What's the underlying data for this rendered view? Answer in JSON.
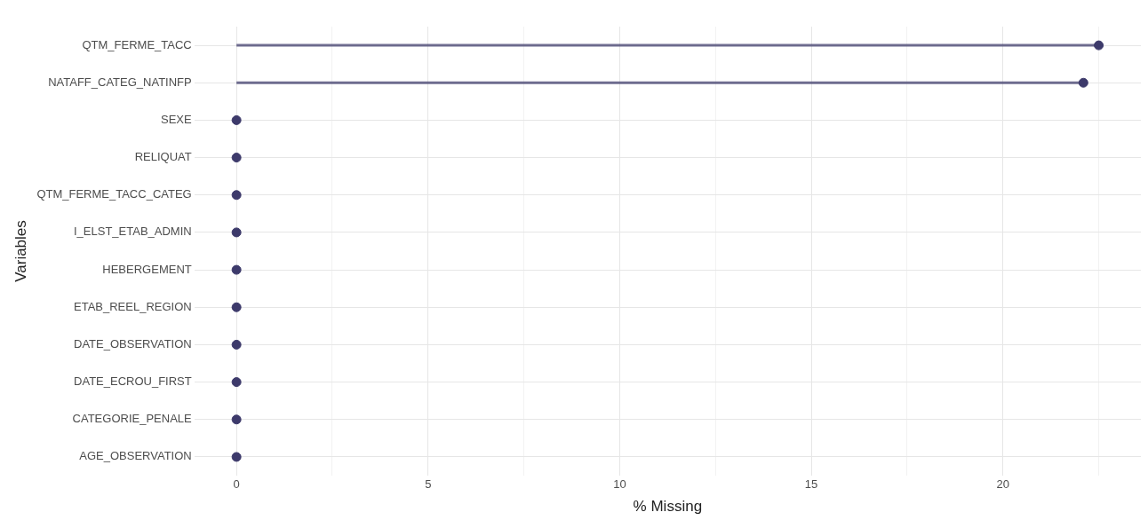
{
  "chart_data": {
    "type": "lollipop",
    "orientation": "horizontal",
    "categories": [
      "QTM_FERME_TACC",
      "NATAFF_CATEG_NATINFP",
      "SEXE",
      "RELIQUAT",
      "QTM_FERME_TACC_CATEG",
      "I_ELST_ETAB_ADMIN",
      "HEBERGEMENT",
      "ETAB_REEL_REGION",
      "DATE_OBSERVATION",
      "DATE_ECROU_FIRST",
      "CATEGORIE_PENALE",
      "AGE_OBSERVATION"
    ],
    "values": [
      22.5,
      22.1,
      0,
      0,
      0,
      0,
      0,
      0,
      0,
      0,
      0,
      0
    ],
    "color": "#3d3a6b",
    "xlabel": "% Missing",
    "ylabel": "Variables",
    "xlim": [
      -1.1,
      23.6
    ],
    "xticks": [
      0,
      {
        "value": 2.5,
        "label": null
      },
      5,
      {
        "value": 7.5,
        "label": null
      },
      10,
      {
        "value": 12.5,
        "label": null
      },
      15,
      {
        "value": 17.5,
        "label": null
      },
      20,
      {
        "value": 22.5,
        "label": null
      }
    ],
    "grid": true,
    "marker": "circle",
    "legend": false
  }
}
